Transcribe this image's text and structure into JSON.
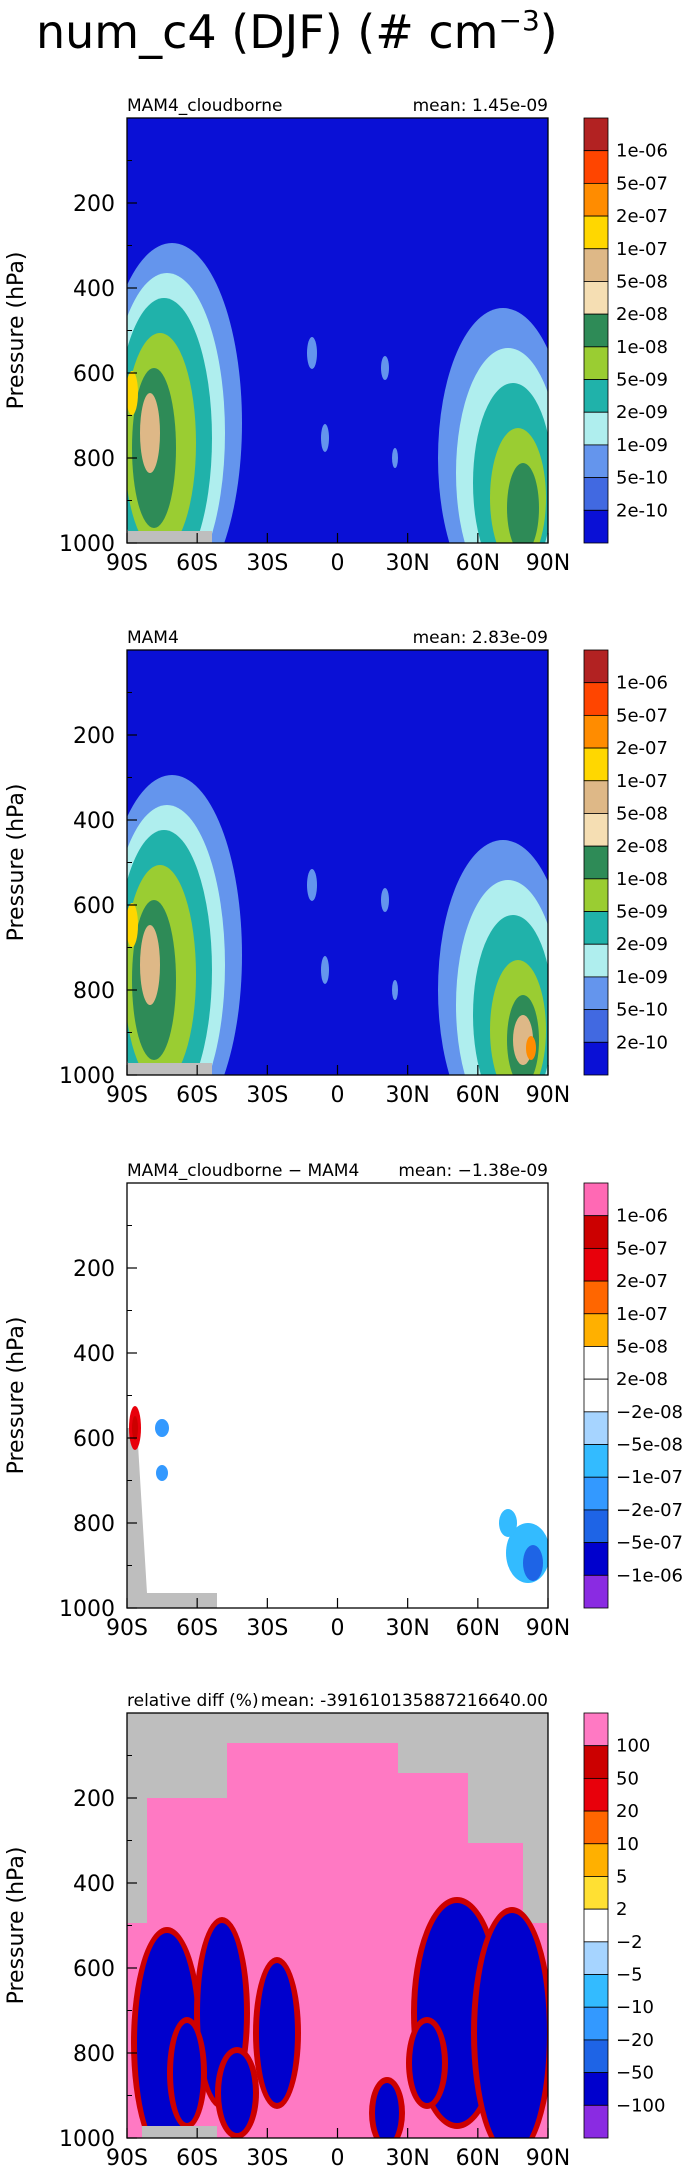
{
  "figure": {
    "title_main": "num_c4 (DJF) (# cm",
    "title_exp": "−3",
    "title_close": ")"
  },
  "colors": {
    "ocean_bg": "#0A10D6",
    "missing": "#BEBEBE",
    "white": "#FFFFFF",
    "pink": "#FF79C3"
  },
  "chart_data": [
    {
      "type": "heatmap",
      "panel": "abs",
      "left_label": "MAM4_cloudborne",
      "right_label": "mean:  1.45e-09",
      "ylabel": "Pressure (hPa)",
      "ylim": [
        1000,
        0
      ],
      "yticks": [
        "200",
        "400",
        "600",
        "800",
        "1000"
      ],
      "xticks": [
        "90S",
        "60S",
        "30S",
        "0",
        "30N",
        "60N",
        "90N"
      ],
      "colorbar_labels": [
        "1e-06",
        "5e-07",
        "2e-07",
        "1e-07",
        "5e-08",
        "2e-08",
        "1e-08",
        "5e-09",
        "2e-09",
        "1e-09",
        "5e-10",
        "2e-10"
      ],
      "colorbar_colors": [
        "#B22222",
        "#FF4500",
        "#FF8C00",
        "#FFD700",
        "#DEB887",
        "#F5DEB3",
        "#2E8B57",
        "#9ACD32",
        "#20B2AA",
        "#AFEEEE",
        "#6495ED",
        "#4169E1",
        "#0A10D6"
      ],
      "mean": 1.45e-09
    },
    {
      "type": "heatmap",
      "panel": "abs",
      "left_label": "MAM4",
      "right_label": "mean:  2.83e-09",
      "ylabel": "Pressure (hPa)",
      "ylim": [
        1000,
        0
      ],
      "yticks": [
        "200",
        "400",
        "600",
        "800",
        "1000"
      ],
      "xticks": [
        "90S",
        "60S",
        "30S",
        "0",
        "30N",
        "60N",
        "90N"
      ],
      "colorbar_labels": [
        "1e-06",
        "5e-07",
        "2e-07",
        "1e-07",
        "5e-08",
        "2e-08",
        "1e-08",
        "5e-09",
        "2e-09",
        "1e-09",
        "5e-10",
        "2e-10"
      ],
      "colorbar_colors": [
        "#B22222",
        "#FF4500",
        "#FF8C00",
        "#FFD700",
        "#DEB887",
        "#F5DEB3",
        "#2E8B57",
        "#9ACD32",
        "#20B2AA",
        "#AFEEEE",
        "#6495ED",
        "#4169E1",
        "#0A10D6"
      ],
      "mean": 2.83e-09
    },
    {
      "type": "heatmap",
      "panel": "diff",
      "left_label": "MAM4_cloudborne − MAM4",
      "right_label": "mean:  −1.38e-09",
      "ylabel": "Pressure (hPa)",
      "ylim": [
        1000,
        0
      ],
      "yticks": [
        "200",
        "400",
        "600",
        "800",
        "1000"
      ],
      "xticks": [
        "90S",
        "60S",
        "30S",
        "0",
        "30N",
        "60N",
        "90N"
      ],
      "colorbar_labels": [
        "1e-06",
        "5e-07",
        "2e-07",
        "1e-07",
        "5e-08",
        "2e-08",
        "−2e-08",
        "−5e-08",
        "−1e-07",
        "−2e-07",
        "−5e-07",
        "−1e-06"
      ],
      "colorbar_colors": [
        "#FF69B4",
        "#CC0000",
        "#E8000B",
        "#FF6600",
        "#FFB000",
        "#FFFFFF",
        "#FFFFFF",
        "#A6D4FF",
        "#33BBFF",
        "#3399FF",
        "#1E64E6",
        "#0000CD",
        "#8A2BE2"
      ],
      "mean": -1.38e-09
    },
    {
      "type": "heatmap",
      "panel": "rel",
      "left_label": "relative diff (%)",
      "right_label": "mean:  -3916101358872166­40.00",
      "ylabel": "Pressure (hPa)",
      "ylim": [
        1000,
        0
      ],
      "yticks": [
        "200",
        "400",
        "600",
        "800",
        "1000"
      ],
      "xticks": [
        "90S",
        "60S",
        "30S",
        "0",
        "30N",
        "60N",
        "90N"
      ],
      "colorbar_labels": [
        "100",
        "50",
        "20",
        "10",
        "5",
        "2",
        "−2",
        "−5",
        "−10",
        "−20",
        "−50",
        "−100"
      ],
      "colorbar_colors": [
        "#FF79C3",
        "#CC0000",
        "#E8000B",
        "#FF6600",
        "#FFB000",
        "#FFE033",
        "#FFFFFF",
        "#A6D4FF",
        "#33BBFF",
        "#3399FF",
        "#1E64E6",
        "#0000CD",
        "#8A2BE2"
      ]
    }
  ]
}
